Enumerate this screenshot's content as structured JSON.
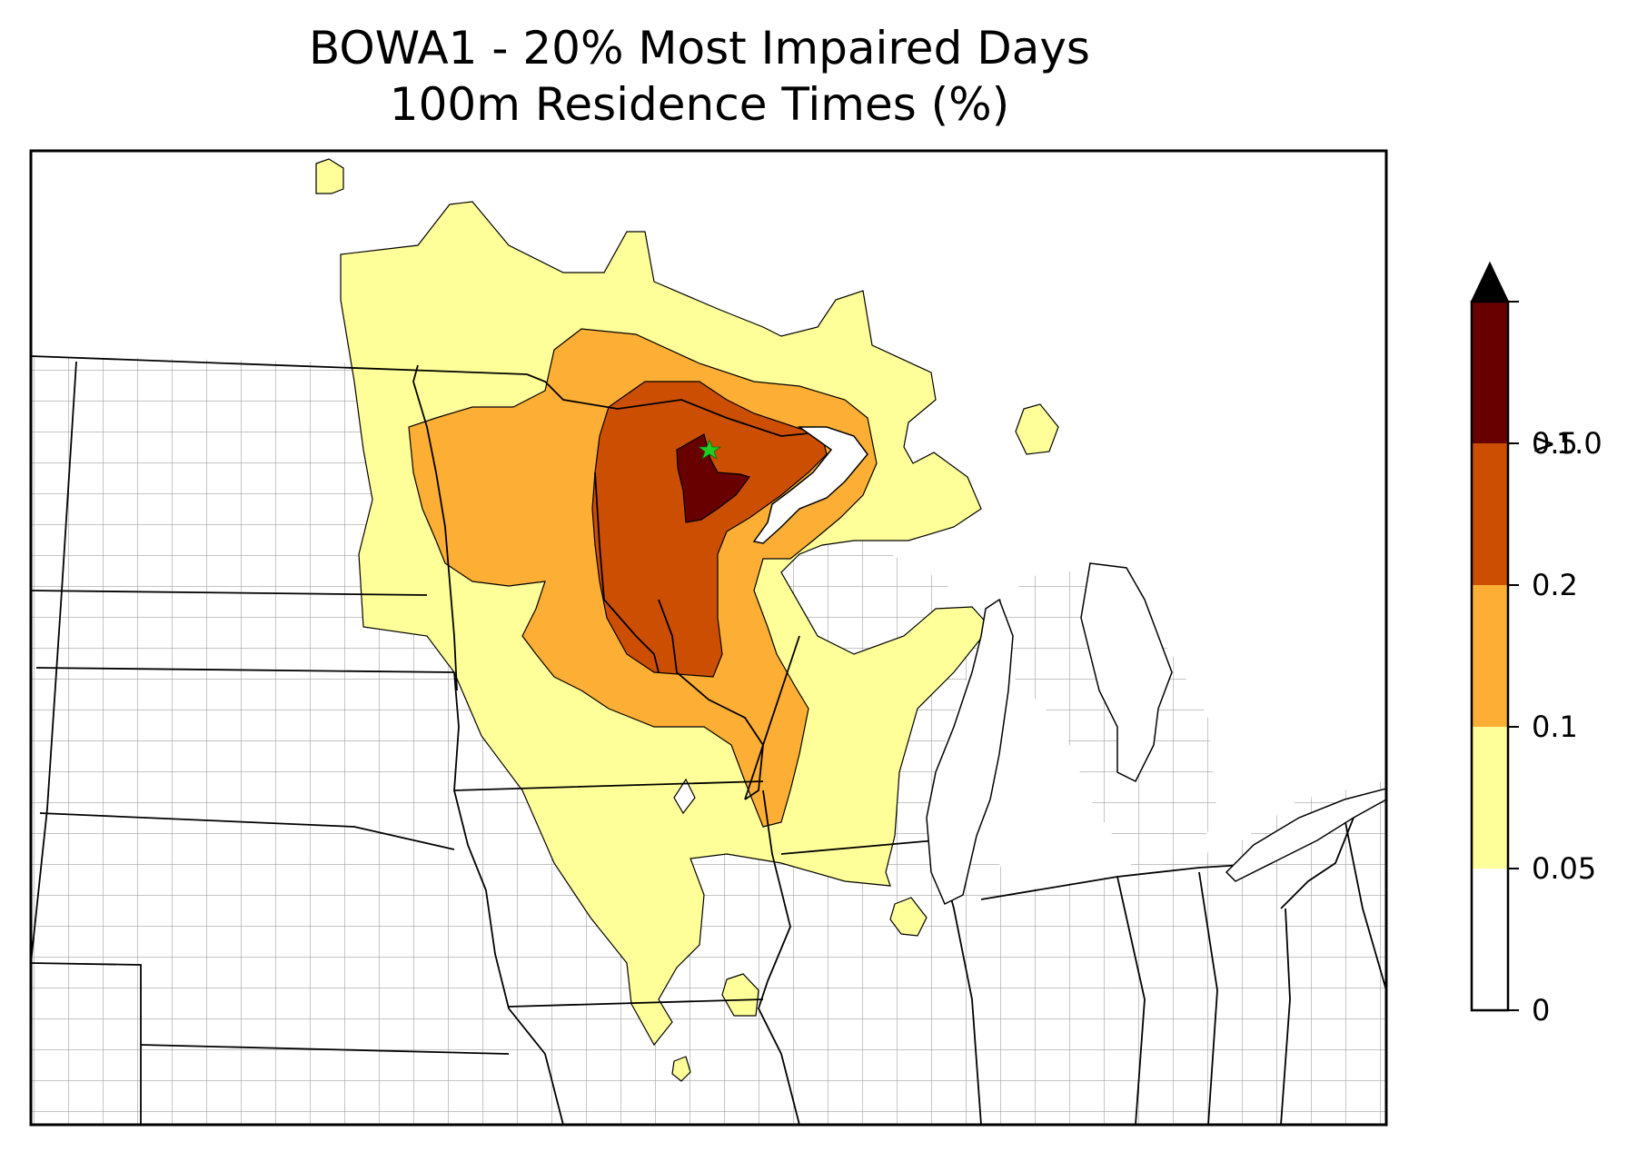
{
  "title": {
    "line1": "BOWA1 - 20% Most Impaired Days",
    "line2": "100m Residence Times (%)"
  },
  "map": {
    "site_marker_icon": "star-icon",
    "site_marker_color": "#22cc22",
    "state_border_color": "#000000",
    "county_border_color": "#a0a0a0"
  },
  "legend": {
    "extend": "max",
    "bins": [
      {
        "label": "0",
        "color": "#ffffff"
      },
      {
        "label": "0.05",
        "color": "#ffff99"
      },
      {
        "label": "0.1",
        "color": "#fdae35"
      },
      {
        "label": "0.2",
        "color": "#cc4e02"
      },
      {
        "label": "0.5",
        "color": "#680000"
      },
      {
        "label": ">1.0",
        "color": "#000000"
      }
    ]
  }
}
